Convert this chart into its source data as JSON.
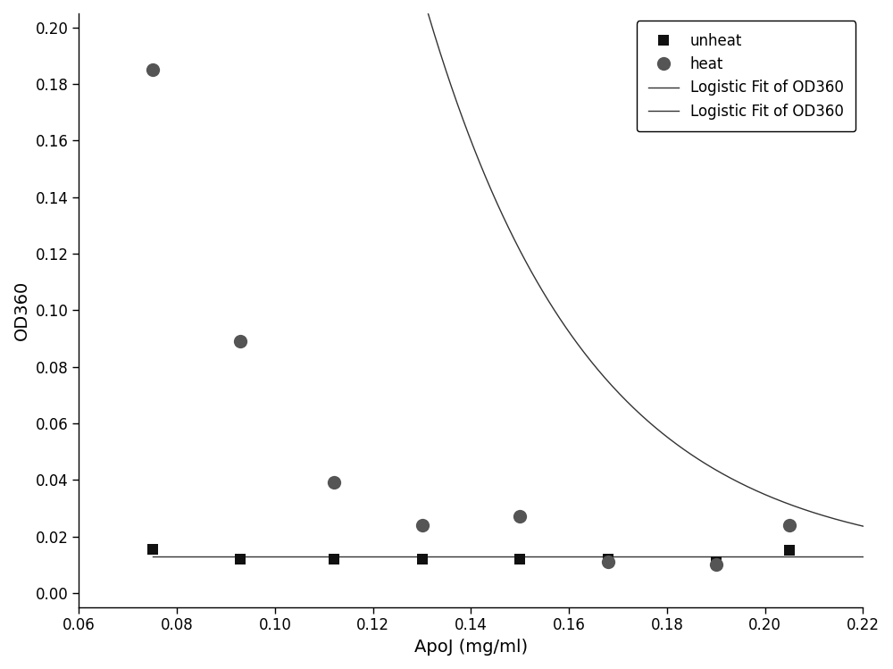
{
  "unheat_x": [
    0.075,
    0.093,
    0.112,
    0.13,
    0.15,
    0.168,
    0.19,
    0.205
  ],
  "unheat_y": [
    0.0155,
    0.012,
    0.012,
    0.012,
    0.012,
    0.012,
    0.011,
    0.015
  ],
  "heat_x": [
    0.075,
    0.093,
    0.112,
    0.13,
    0.15,
    0.168,
    0.19,
    0.205
  ],
  "heat_y": [
    0.185,
    0.089,
    0.039,
    0.024,
    0.027,
    0.011,
    0.01,
    0.024
  ],
  "xlabel": "ApoJ (mg/ml)",
  "ylabel": "OD360",
  "xlim": [
    0.06,
    0.22
  ],
  "ylim": [
    -0.005,
    0.205
  ],
  "yticks": [
    0.0,
    0.02,
    0.04,
    0.06,
    0.08,
    0.1,
    0.12,
    0.14,
    0.16,
    0.18,
    0.2
  ],
  "xticks": [
    0.06,
    0.08,
    0.1,
    0.12,
    0.14,
    0.16,
    0.18,
    0.2,
    0.22
  ],
  "legend_labels": [
    "unheat",
    "heat",
    "Logistic Fit of OD360",
    "Logistic Fit of OD360"
  ],
  "marker_unheat": "s",
  "marker_heat": "o",
  "color_unheat": "#111111",
  "color_heat": "#555555",
  "color_fit_line": "#333333",
  "markersize_unheat": 8,
  "markersize_heat": 11,
  "linewidth_fit": 1.0,
  "background_color": "#ffffff",
  "figsize": [
    10.0,
    7.49
  ],
  "dpi": 100,
  "fit_x_start": 0.075,
  "fit_x_end": 0.22
}
